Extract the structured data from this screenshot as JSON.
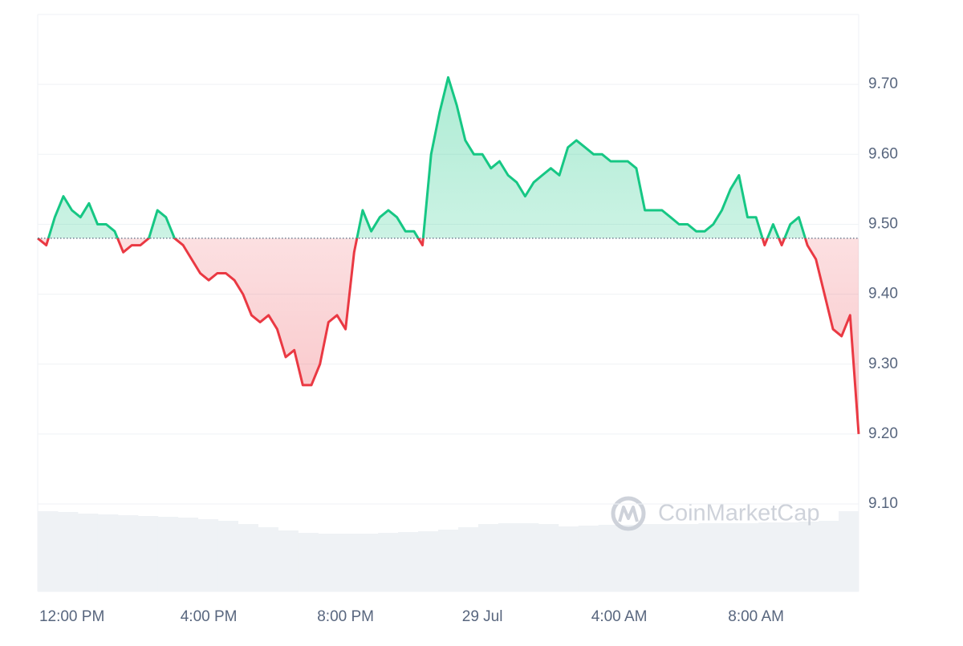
{
  "chart_data": {
    "type": "line",
    "x": [
      -1,
      -0.75,
      -0.5,
      -0.25,
      0,
      0.25,
      0.5,
      0.75,
      1,
      1.25,
      1.5,
      1.75,
      2,
      2.25,
      2.5,
      2.75,
      3,
      3.25,
      3.5,
      3.75,
      4,
      4.25,
      4.5,
      4.75,
      5,
      5.25,
      5.5,
      5.75,
      6,
      6.25,
      6.5,
      6.75,
      7,
      7.25,
      7.5,
      7.75,
      8,
      8.25,
      8.5,
      8.75,
      9,
      9.25,
      9.5,
      9.75,
      10,
      10.25,
      10.5,
      10.75,
      11,
      11.25,
      11.5,
      11.75,
      12,
      12.25,
      12.5,
      12.75,
      13,
      13.25,
      13.5,
      13.75,
      14,
      14.25,
      14.5,
      14.75,
      15,
      15.25,
      15.5,
      15.75,
      16,
      16.25,
      16.5,
      16.75,
      17,
      17.25,
      17.5,
      17.75,
      18,
      18.25,
      18.5,
      18.75,
      19,
      19.25,
      19.5,
      19.75,
      20,
      20.25,
      20.5,
      20.75,
      21,
      21.25,
      21.5,
      21.75,
      22,
      22.25,
      22.5,
      22.75,
      23
    ],
    "series": [
      {
        "values": [
          9.48,
          9.47,
          9.51,
          9.54,
          9.52,
          9.51,
          9.53,
          9.5,
          9.5,
          9.49,
          9.46,
          9.47,
          9.47,
          9.48,
          9.52,
          9.51,
          9.48,
          9.47,
          9.45,
          9.43,
          9.42,
          9.43,
          9.43,
          9.42,
          9.4,
          9.37,
          9.36,
          9.37,
          9.35,
          9.31,
          9.32,
          9.27,
          9.27,
          9.3,
          9.36,
          9.37,
          9.35,
          9.46,
          9.52,
          9.49,
          9.51,
          9.52,
          9.51,
          9.49,
          9.49,
          9.47,
          9.6,
          9.66,
          9.71,
          9.67,
          9.62,
          9.6,
          9.6,
          9.58,
          9.59,
          9.57,
          9.56,
          9.54,
          9.56,
          9.57,
          9.58,
          9.57,
          9.61,
          9.62,
          9.61,
          9.6,
          9.6,
          9.59,
          9.59,
          9.59,
          9.58,
          9.52,
          9.52,
          9.52,
          9.51,
          9.5,
          9.5,
          9.49,
          9.49,
          9.5,
          9.52,
          9.55,
          9.57,
          9.51,
          9.51,
          9.47,
          9.5,
          9.47,
          9.5,
          9.51,
          9.47,
          9.45,
          9.4,
          9.35,
          9.34,
          9.37,
          9.2
        ],
        "up_color": "#16c784",
        "down_color": "#ea3943"
      }
    ],
    "baseline": 9.48,
    "volume": {
      "values": [
        100,
        99,
        97,
        96,
        95,
        94,
        93,
        92,
        90,
        88,
        84,
        80,
        76,
        73,
        72,
        72,
        72,
        73,
        74,
        75,
        77,
        80,
        84,
        85,
        85,
        84,
        81,
        82,
        83,
        83,
        84,
        84,
        84,
        85,
        85,
        85,
        86,
        86,
        87,
        88,
        100
      ],
      "vlim": [
        0,
        100
      ],
      "color": "#eff2f5"
    },
    "xlim": [
      -1,
      23
    ],
    "xticks": [
      {
        "value": 0,
        "label": "12:00 PM"
      },
      {
        "value": 4,
        "label": "4:00 PM"
      },
      {
        "value": 8,
        "label": "8:00 PM"
      },
      {
        "value": 12,
        "label": "29 Jul"
      },
      {
        "value": 16,
        "label": "4:00 AM"
      },
      {
        "value": 20,
        "label": "8:00 AM"
      }
    ],
    "ylim": [
      8.975,
      9.8
    ],
    "yticks": [
      {
        "value": 9.1,
        "label": "9.10"
      },
      {
        "value": 9.2,
        "label": "9.20"
      },
      {
        "value": 9.3,
        "label": "9.30"
      },
      {
        "value": 9.4,
        "label": "9.40"
      },
      {
        "value": 9.5,
        "label": "9.50"
      },
      {
        "value": 9.6,
        "label": "9.60"
      },
      {
        "value": 9.7,
        "label": "9.70"
      }
    ],
    "grid": true,
    "watermark": "CoinMarketCap"
  }
}
